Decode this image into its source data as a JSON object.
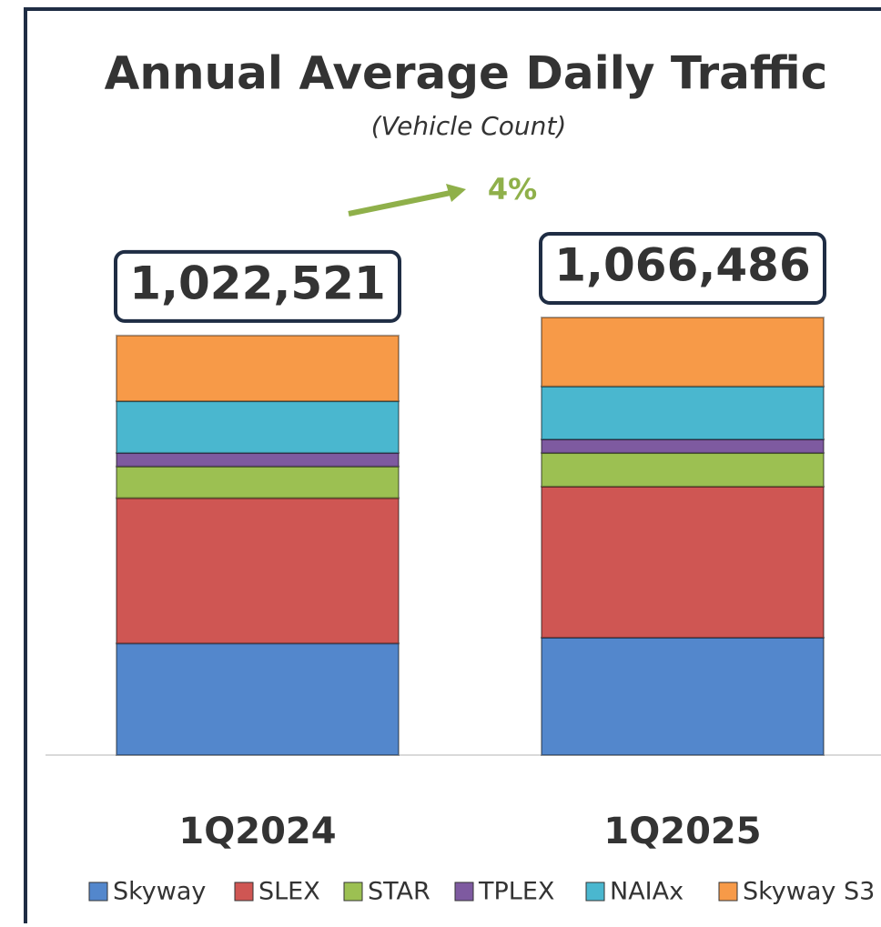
{
  "chart_data": {
    "type": "stacked_bar",
    "title": "Annual Average Daily Traffic",
    "subtitle": "(Vehicle Count)",
    "annotation": "4%",
    "categories": [
      "1Q2024",
      "1Q2025"
    ],
    "total_labels": [
      "1,022,521",
      "1,066,486"
    ],
    "series": [
      {
        "name": "Skyway",
        "color": "#5387cc",
        "values": [
          272000,
          286000
        ]
      },
      {
        "name": "SLEX",
        "color": "#cf5653",
        "values": [
          354000,
          368000
        ]
      },
      {
        "name": "STAR",
        "color": "#9cc052",
        "values": [
          77000,
          82000
        ]
      },
      {
        "name": "TPLEX",
        "color": "#7e5aa0",
        "values": [
          33000,
          33000
        ]
      },
      {
        "name": "NAIAx",
        "color": "#4ab7cf",
        "values": [
          126000,
          129000
        ]
      },
      {
        "name": "Skyway S3",
        "color": "#f79a48",
        "values": [
          160000,
          168000
        ]
      }
    ]
  }
}
